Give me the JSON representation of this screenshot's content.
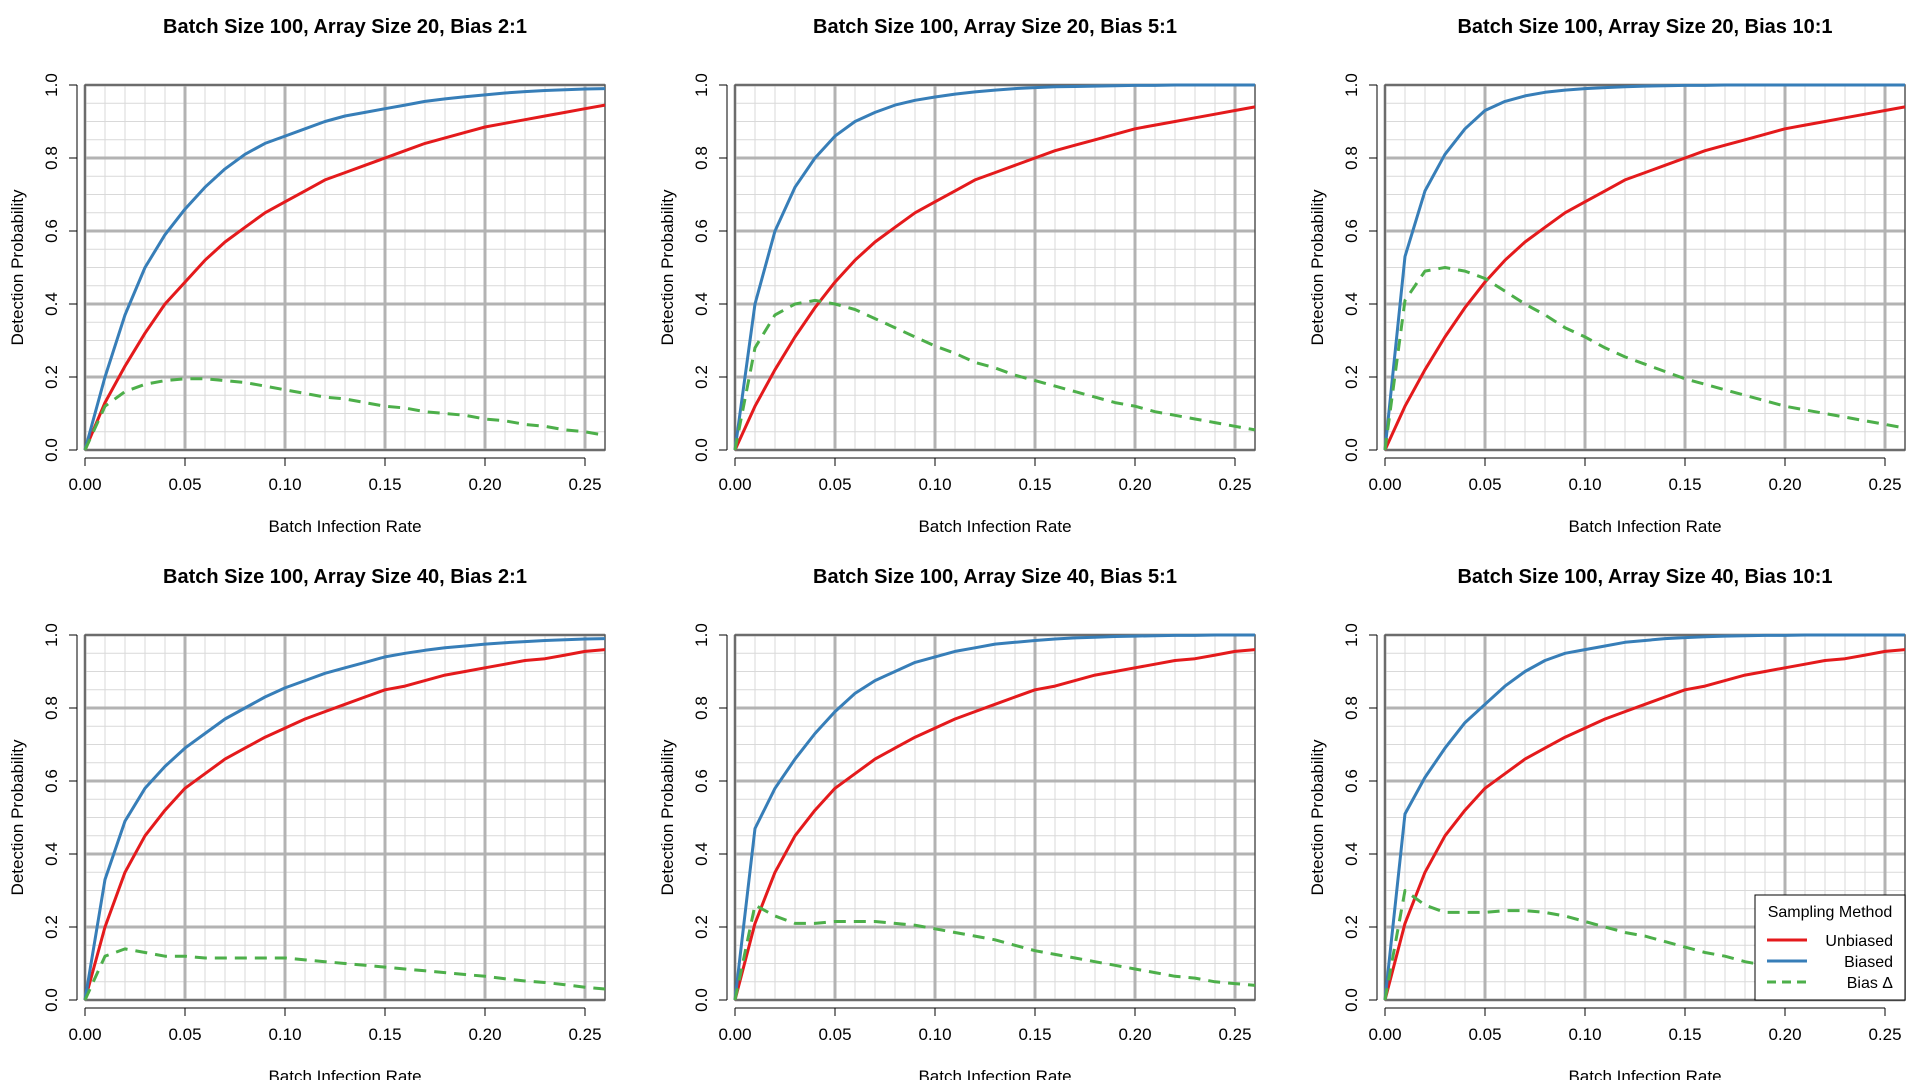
{
  "colors": {
    "unbiased": "#e41a1c",
    "biased": "#377eb8",
    "bias_delta": "#4daf4a",
    "grid_major": "#b3b3b3",
    "grid_minor": "#d9d9d9",
    "frame": "#555555"
  },
  "legend": {
    "title": "Sampling Method",
    "entries": [
      {
        "label": "Unbiased",
        "color": "#e41a1c",
        "dash": false
      },
      {
        "label": "Biased",
        "color": "#377eb8",
        "dash": false
      },
      {
        "label": "Bias Δ",
        "color": "#4daf4a",
        "dash": true
      }
    ]
  },
  "chart_data": [
    {
      "type": "line",
      "title": "Batch Size 100, Array Size 20, Bias 2:1",
      "xlabel": "Batch Infection Rate",
      "ylabel": "Detection Probability",
      "xlim": [
        0,
        0.26
      ],
      "ylim": [
        0,
        1.0
      ],
      "xticks": [
        "0.00",
        "0.05",
        "0.10",
        "0.15",
        "0.20",
        "0.25"
      ],
      "yticks": [
        "0.0",
        "0.2",
        "0.4",
        "0.6",
        "0.8",
        "1.0"
      ],
      "grid": true,
      "x": [
        0,
        0.01,
        0.02,
        0.03,
        0.04,
        0.05,
        0.06,
        0.07,
        0.08,
        0.09,
        0.1,
        0.11,
        0.12,
        0.13,
        0.14,
        0.15,
        0.16,
        0.17,
        0.18,
        0.19,
        0.2,
        0.21,
        0.22,
        0.23,
        0.24,
        0.25,
        0.26
      ],
      "series": [
        {
          "name": "Unbiased",
          "values": [
            0,
            0.13,
            0.23,
            0.32,
            0.4,
            0.46,
            0.52,
            0.57,
            0.61,
            0.65,
            0.68,
            0.71,
            0.74,
            0.76,
            0.78,
            0.8,
            0.82,
            0.84,
            0.855,
            0.87,
            0.885,
            0.895,
            0.905,
            0.915,
            0.925,
            0.935,
            0.945
          ]
        },
        {
          "name": "Biased",
          "values": [
            0,
            0.2,
            0.37,
            0.5,
            0.59,
            0.66,
            0.72,
            0.77,
            0.81,
            0.84,
            0.86,
            0.88,
            0.9,
            0.915,
            0.925,
            0.935,
            0.945,
            0.955,
            0.962,
            0.968,
            0.973,
            0.978,
            0.982,
            0.985,
            0.987,
            0.989,
            0.99
          ]
        },
        {
          "name": "Bias Δ",
          "values": [
            0,
            0.12,
            0.16,
            0.18,
            0.19,
            0.195,
            0.195,
            0.19,
            0.185,
            0.175,
            0.165,
            0.155,
            0.145,
            0.14,
            0.13,
            0.12,
            0.115,
            0.105,
            0.1,
            0.095,
            0.085,
            0.08,
            0.07,
            0.065,
            0.055,
            0.05,
            0.04
          ]
        }
      ]
    },
    {
      "type": "line",
      "title": "Batch Size 100, Array Size 20, Bias 5:1",
      "xlabel": "Batch Infection Rate",
      "ylabel": "Detection Probability",
      "xlim": [
        0,
        0.26
      ],
      "ylim": [
        0,
        1.0
      ],
      "xticks": [
        "0.00",
        "0.05",
        "0.10",
        "0.15",
        "0.20",
        "0.25"
      ],
      "yticks": [
        "0.0",
        "0.2",
        "0.4",
        "0.6",
        "0.8",
        "1.0"
      ],
      "grid": true,
      "x": [
        0,
        0.01,
        0.02,
        0.03,
        0.04,
        0.05,
        0.06,
        0.07,
        0.08,
        0.09,
        0.1,
        0.11,
        0.12,
        0.13,
        0.14,
        0.15,
        0.16,
        0.17,
        0.18,
        0.19,
        0.2,
        0.21,
        0.22,
        0.23,
        0.24,
        0.25,
        0.26
      ],
      "series": [
        {
          "name": "Unbiased",
          "values": [
            0,
            0.12,
            0.22,
            0.31,
            0.39,
            0.46,
            0.52,
            0.57,
            0.61,
            0.65,
            0.68,
            0.71,
            0.74,
            0.76,
            0.78,
            0.8,
            0.82,
            0.835,
            0.85,
            0.865,
            0.88,
            0.89,
            0.9,
            0.91,
            0.92,
            0.93,
            0.94
          ]
        },
        {
          "name": "Biased",
          "values": [
            0,
            0.4,
            0.6,
            0.72,
            0.8,
            0.86,
            0.9,
            0.925,
            0.945,
            0.958,
            0.967,
            0.975,
            0.981,
            0.986,
            0.99,
            0.993,
            0.995,
            0.996,
            0.997,
            0.998,
            0.999,
            0.999,
            1.0,
            1.0,
            1.0,
            1.0,
            1.0
          ]
        },
        {
          "name": "Bias Δ",
          "values": [
            0,
            0.28,
            0.37,
            0.4,
            0.41,
            0.4,
            0.385,
            0.36,
            0.335,
            0.31,
            0.285,
            0.265,
            0.24,
            0.225,
            0.205,
            0.19,
            0.175,
            0.16,
            0.145,
            0.13,
            0.12,
            0.105,
            0.095,
            0.085,
            0.075,
            0.065,
            0.055
          ]
        }
      ]
    },
    {
      "type": "line",
      "title": "Batch Size 100, Array Size 20, Bias 10:1",
      "xlabel": "Batch Infection Rate",
      "ylabel": "Detection Probability",
      "xlim": [
        0,
        0.26
      ],
      "ylim": [
        0,
        1.0
      ],
      "xticks": [
        "0.00",
        "0.05",
        "0.10",
        "0.15",
        "0.20",
        "0.25"
      ],
      "yticks": [
        "0.0",
        "0.2",
        "0.4",
        "0.6",
        "0.8",
        "1.0"
      ],
      "grid": true,
      "x": [
        0,
        0.01,
        0.02,
        0.03,
        0.04,
        0.05,
        0.06,
        0.07,
        0.08,
        0.09,
        0.1,
        0.11,
        0.12,
        0.13,
        0.14,
        0.15,
        0.16,
        0.17,
        0.18,
        0.19,
        0.2,
        0.21,
        0.22,
        0.23,
        0.24,
        0.25,
        0.26
      ],
      "series": [
        {
          "name": "Unbiased",
          "values": [
            0,
            0.12,
            0.22,
            0.31,
            0.39,
            0.46,
            0.52,
            0.57,
            0.61,
            0.65,
            0.68,
            0.71,
            0.74,
            0.76,
            0.78,
            0.8,
            0.82,
            0.835,
            0.85,
            0.865,
            0.88,
            0.89,
            0.9,
            0.91,
            0.92,
            0.93,
            0.94
          ]
        },
        {
          "name": "Biased",
          "values": [
            0,
            0.53,
            0.71,
            0.81,
            0.88,
            0.93,
            0.955,
            0.97,
            0.98,
            0.986,
            0.99,
            0.993,
            0.995,
            0.997,
            0.998,
            0.999,
            0.999,
            1.0,
            1.0,
            1.0,
            1.0,
            1.0,
            1.0,
            1.0,
            1.0,
            1.0,
            1.0
          ]
        },
        {
          "name": "Bias Δ",
          "values": [
            0,
            0.41,
            0.49,
            0.5,
            0.49,
            0.47,
            0.435,
            0.4,
            0.37,
            0.335,
            0.31,
            0.28,
            0.255,
            0.235,
            0.215,
            0.195,
            0.18,
            0.165,
            0.15,
            0.135,
            0.12,
            0.11,
            0.1,
            0.09,
            0.08,
            0.07,
            0.06
          ]
        }
      ]
    },
    {
      "type": "line",
      "title": "Batch Size 100, Array Size 40, Bias 2:1",
      "xlabel": "Batch Infection Rate",
      "ylabel": "Detection Probability",
      "xlim": [
        0,
        0.26
      ],
      "ylim": [
        0,
        1.0
      ],
      "xticks": [
        "0.00",
        "0.05",
        "0.10",
        "0.15",
        "0.20",
        "0.25"
      ],
      "yticks": [
        "0.0",
        "0.2",
        "0.4",
        "0.6",
        "0.8",
        "1.0"
      ],
      "grid": true,
      "x": [
        0,
        0.01,
        0.02,
        0.03,
        0.04,
        0.05,
        0.06,
        0.07,
        0.08,
        0.09,
        0.1,
        0.11,
        0.12,
        0.13,
        0.14,
        0.15,
        0.16,
        0.17,
        0.18,
        0.19,
        0.2,
        0.21,
        0.22,
        0.23,
        0.24,
        0.25,
        0.26
      ],
      "series": [
        {
          "name": "Unbiased",
          "values": [
            0,
            0.2,
            0.35,
            0.45,
            0.52,
            0.58,
            0.62,
            0.66,
            0.69,
            0.72,
            0.745,
            0.77,
            0.79,
            0.81,
            0.83,
            0.85,
            0.86,
            0.875,
            0.89,
            0.9,
            0.91,
            0.92,
            0.93,
            0.935,
            0.945,
            0.955,
            0.96
          ]
        },
        {
          "name": "Biased",
          "values": [
            0,
            0.33,
            0.49,
            0.58,
            0.64,
            0.69,
            0.73,
            0.77,
            0.8,
            0.83,
            0.855,
            0.875,
            0.895,
            0.91,
            0.925,
            0.94,
            0.95,
            0.958,
            0.965,
            0.97,
            0.975,
            0.979,
            0.982,
            0.985,
            0.987,
            0.989,
            0.99
          ]
        },
        {
          "name": "Bias Δ",
          "values": [
            0,
            0.12,
            0.14,
            0.13,
            0.12,
            0.12,
            0.115,
            0.115,
            0.115,
            0.115,
            0.115,
            0.11,
            0.105,
            0.1,
            0.095,
            0.09,
            0.085,
            0.08,
            0.075,
            0.07,
            0.065,
            0.058,
            0.052,
            0.048,
            0.042,
            0.035,
            0.03
          ]
        }
      ]
    },
    {
      "type": "line",
      "title": "Batch Size 100, Array Size 40, Bias 5:1",
      "xlabel": "Batch Infection Rate",
      "ylabel": "Detection Probability",
      "xlim": [
        0,
        0.26
      ],
      "ylim": [
        0,
        1.0
      ],
      "xticks": [
        "0.00",
        "0.05",
        "0.10",
        "0.15",
        "0.20",
        "0.25"
      ],
      "yticks": [
        "0.0",
        "0.2",
        "0.4",
        "0.6",
        "0.8",
        "1.0"
      ],
      "grid": true,
      "x": [
        0,
        0.01,
        0.02,
        0.03,
        0.04,
        0.05,
        0.06,
        0.07,
        0.08,
        0.09,
        0.1,
        0.11,
        0.12,
        0.13,
        0.14,
        0.15,
        0.16,
        0.17,
        0.18,
        0.19,
        0.2,
        0.21,
        0.22,
        0.23,
        0.24,
        0.25,
        0.26
      ],
      "series": [
        {
          "name": "Unbiased",
          "values": [
            0,
            0.21,
            0.35,
            0.45,
            0.52,
            0.58,
            0.62,
            0.66,
            0.69,
            0.72,
            0.745,
            0.77,
            0.79,
            0.81,
            0.83,
            0.85,
            0.86,
            0.875,
            0.89,
            0.9,
            0.91,
            0.92,
            0.93,
            0.935,
            0.945,
            0.955,
            0.96
          ]
        },
        {
          "name": "Biased",
          "values": [
            0,
            0.47,
            0.58,
            0.66,
            0.73,
            0.79,
            0.84,
            0.875,
            0.9,
            0.925,
            0.94,
            0.955,
            0.965,
            0.975,
            0.98,
            0.985,
            0.989,
            0.992,
            0.994,
            0.996,
            0.997,
            0.998,
            0.999,
            0.999,
            1.0,
            1.0,
            1.0
          ]
        },
        {
          "name": "Bias Δ",
          "values": [
            0,
            0.26,
            0.23,
            0.21,
            0.21,
            0.215,
            0.215,
            0.215,
            0.21,
            0.205,
            0.195,
            0.185,
            0.175,
            0.165,
            0.15,
            0.135,
            0.125,
            0.115,
            0.105,
            0.095,
            0.085,
            0.075,
            0.065,
            0.06,
            0.05,
            0.045,
            0.04
          ]
        }
      ]
    },
    {
      "type": "line",
      "title": "Batch Size 100, Array Size 40, Bias 10:1",
      "xlabel": "Batch Infection Rate",
      "ylabel": "Detection Probability",
      "xlim": [
        0,
        0.26
      ],
      "ylim": [
        0,
        1.0
      ],
      "xticks": [
        "0.00",
        "0.05",
        "0.10",
        "0.15",
        "0.20",
        "0.25"
      ],
      "yticks": [
        "0.0",
        "0.2",
        "0.4",
        "0.6",
        "0.8",
        "1.0"
      ],
      "grid": true,
      "legend_position": "bottom-right",
      "x": [
        0,
        0.01,
        0.02,
        0.03,
        0.04,
        0.05,
        0.06,
        0.07,
        0.08,
        0.09,
        0.1,
        0.11,
        0.12,
        0.13,
        0.14,
        0.15,
        0.16,
        0.17,
        0.18,
        0.19,
        0.2,
        0.21,
        0.22,
        0.23,
        0.24,
        0.25,
        0.26
      ],
      "series": [
        {
          "name": "Unbiased",
          "values": [
            0,
            0.21,
            0.35,
            0.45,
            0.52,
            0.58,
            0.62,
            0.66,
            0.69,
            0.72,
            0.745,
            0.77,
            0.79,
            0.81,
            0.83,
            0.85,
            0.86,
            0.875,
            0.89,
            0.9,
            0.91,
            0.92,
            0.93,
            0.935,
            0.945,
            0.955,
            0.96
          ]
        },
        {
          "name": "Biased",
          "values": [
            0,
            0.51,
            0.61,
            0.69,
            0.76,
            0.81,
            0.86,
            0.9,
            0.93,
            0.95,
            0.96,
            0.97,
            0.98,
            0.985,
            0.99,
            0.993,
            0.995,
            0.997,
            0.998,
            0.999,
            0.999,
            1.0,
            1.0,
            1.0,
            1.0,
            1.0,
            1.0
          ]
        },
        {
          "name": "Bias Δ",
          "values": [
            0,
            0.3,
            0.26,
            0.24,
            0.24,
            0.24,
            0.245,
            0.245,
            0.24,
            0.23,
            0.215,
            0.2,
            0.185,
            0.175,
            0.16,
            0.145,
            0.13,
            0.12,
            0.105,
            0.095,
            0.085,
            0.075,
            0.065,
            0.06,
            0.05,
            0.045,
            0.04
          ]
        }
      ]
    }
  ]
}
